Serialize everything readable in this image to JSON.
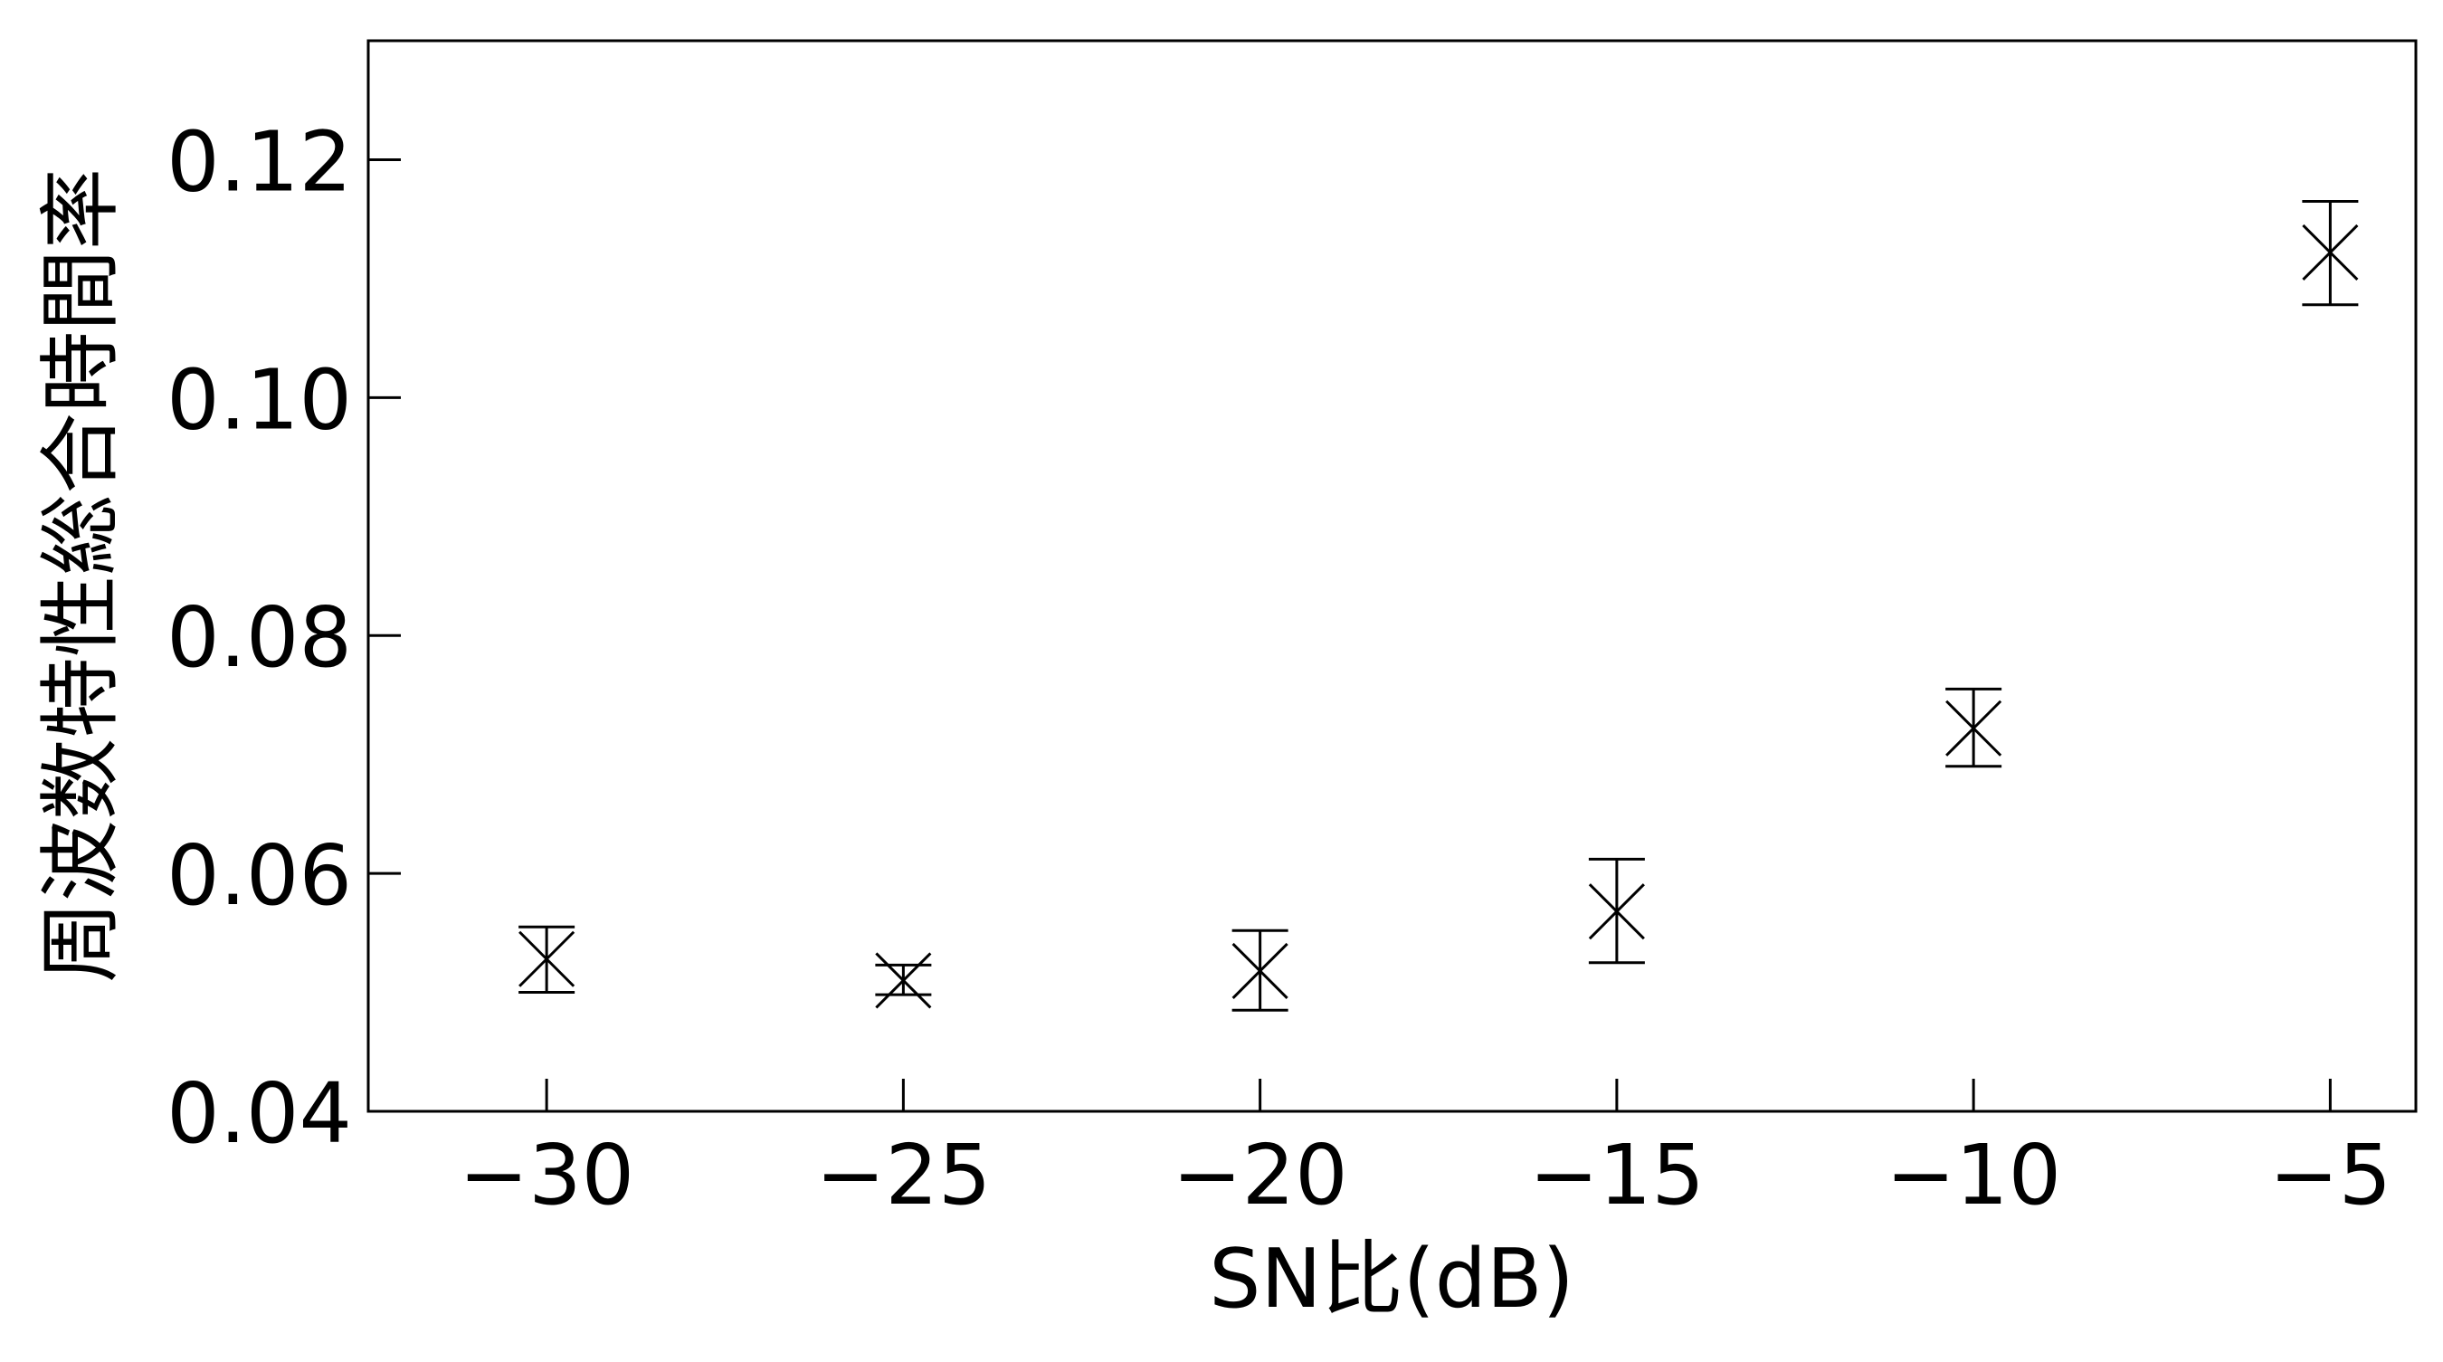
{
  "chart_data": {
    "type": "scatter",
    "xlabel": "SN比(dB)",
    "ylabel": "周波数特性総合時間率",
    "xlim": [
      -32.5,
      -3.8
    ],
    "ylim": [
      0.04,
      0.13
    ],
    "xticks": [
      -30,
      -25,
      -20,
      -15,
      -10,
      -5
    ],
    "xtick_labels": [
      "−30",
      "−25",
      "−20",
      "−15",
      "−10",
      "−5"
    ],
    "yticks": [
      0.04,
      0.06,
      0.08,
      0.1,
      0.12
    ],
    "ytick_labels": [
      "0.04",
      "0.06",
      "0.08",
      "0.10",
      "0.12"
    ],
    "grid": false,
    "marker": "x",
    "color": "#000000",
    "points": [
      {
        "x": -30,
        "y": 0.0528,
        "yerr_low": 0.05,
        "yerr_high": 0.0555
      },
      {
        "x": -25,
        "y": 0.051,
        "yerr_low": 0.0498,
        "yerr_high": 0.0523
      },
      {
        "x": -20,
        "y": 0.0518,
        "yerr_low": 0.0485,
        "yerr_high": 0.0552
      },
      {
        "x": -15,
        "y": 0.0568,
        "yerr_low": 0.0525,
        "yerr_high": 0.0612
      },
      {
        "x": -10,
        "y": 0.0722,
        "yerr_low": 0.069,
        "yerr_high": 0.0755
      },
      {
        "x": -5,
        "y": 0.1122,
        "yerr_low": 0.1078,
        "yerr_high": 0.1165
      }
    ]
  }
}
